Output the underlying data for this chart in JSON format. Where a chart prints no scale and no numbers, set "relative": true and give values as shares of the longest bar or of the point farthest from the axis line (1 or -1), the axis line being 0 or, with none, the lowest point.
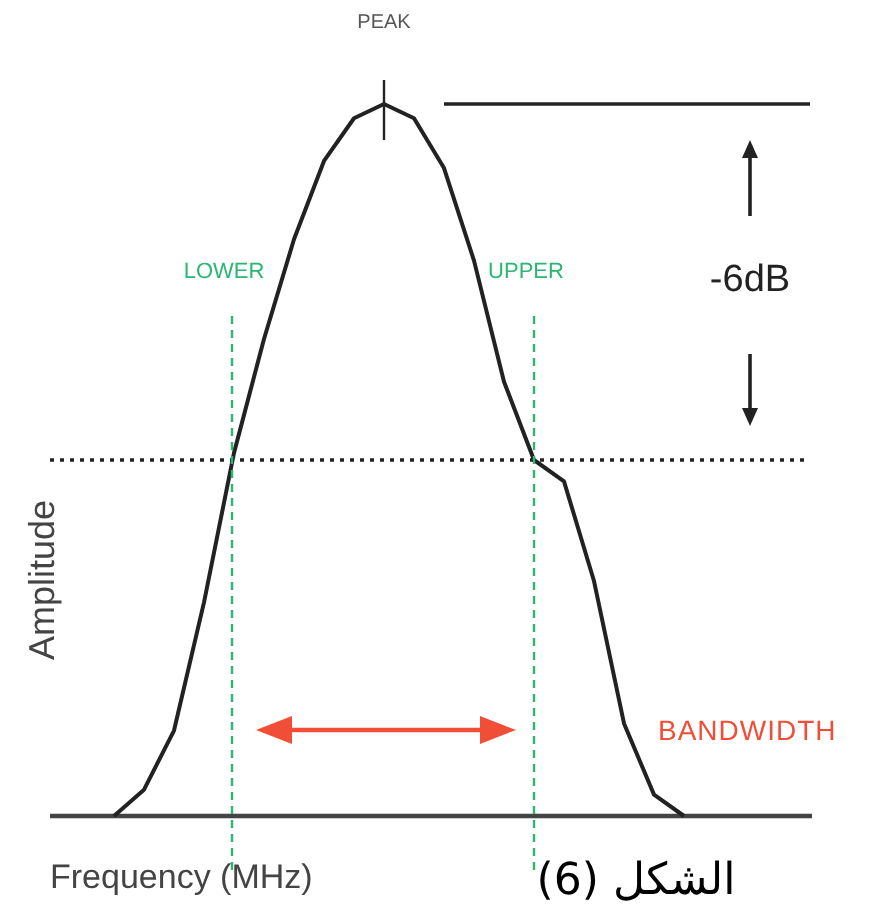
{
  "chart_data": {
    "type": "line",
    "relative": true,
    "xlabel": "Frequency (MHz)",
    "ylabel": "Amplitude",
    "categories": [
      null,
      null,
      null,
      null,
      null,
      null,
      null,
      null,
      null,
      null,
      null,
      null,
      null,
      null,
      null,
      null,
      null,
      null,
      null,
      null
    ],
    "series": [
      {
        "color": "#222222",
        "values": [
          0,
          0.037,
          0.12,
          0.3,
          0.51,
          0.67,
          0.81,
          0.92,
          0.98,
          1,
          0.98,
          0.91,
          0.78,
          0.61,
          0.5,
          0.47,
          0.33,
          0.13,
          0.03,
          0
        ]
      }
    ],
    "line_style": "solid",
    "marker": "none",
    "tick_labels": false,
    "ref_lines": [
      {
        "axis": "y",
        "value": 0.5,
        "line_style": "dotted",
        "color": "#222222"
      },
      {
        "axis": "y",
        "value": 1,
        "line_style": "solid",
        "color": "#222222"
      }
    ],
    "annotations": [
      "PEAK",
      "-6dB",
      "BANDWIDTH",
      "الشكل (6)",
      "LOWER",
      "UPPER"
    ]
  }
}
